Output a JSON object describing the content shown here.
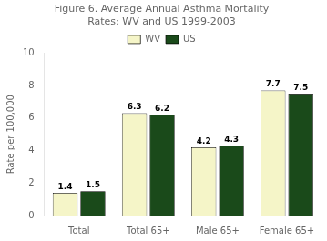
{
  "chart_data": {
    "type": "bar",
    "title": "Figure 6. Average Annual Asthma Mortality\nRates: WV and US 1999-2003",
    "categories": [
      "Total",
      "Total 65+",
      "Male 65+",
      "Female 65+"
    ],
    "series": [
      {
        "name": "WV",
        "color": "#f5f5c8",
        "values": [
          1.4,
          6.3,
          4.2,
          7.7
        ]
      },
      {
        "name": "US",
        "color": "#1a4a1a",
        "values": [
          1.5,
          6.2,
          4.3,
          7.5
        ]
      }
    ],
    "ylabel": "Rate per 100,000",
    "ylim": [
      0,
      10
    ],
    "yticks": [
      0,
      2,
      4,
      6,
      8,
      10
    ],
    "grid": false,
    "legend": "upper center",
    "data_labels": true
  }
}
